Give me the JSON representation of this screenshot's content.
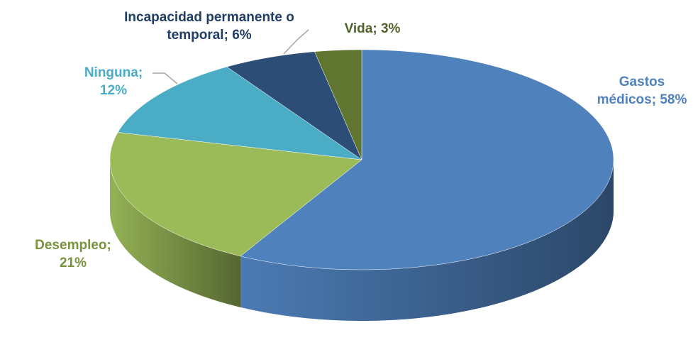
{
  "chart_data": {
    "type": "pie3d",
    "values": [
      58,
      21,
      12,
      6,
      3
    ],
    "value_labels": [
      "Gastos médicos; 58%",
      "Desempleo; 21%",
      "Ninguna; 12%",
      "Incapacidad permanente o temporal; 6%",
      "Vida; 3%"
    ],
    "colors": [
      "#4f81bd",
      "#9bbb59",
      "#4bacc6",
      "#2c4d75",
      "#5f7530"
    ],
    "label_colors": [
      "#4f81bd",
      "#77933c",
      "#4bacc6",
      "#1f3d66",
      "#4f6228"
    ]
  }
}
